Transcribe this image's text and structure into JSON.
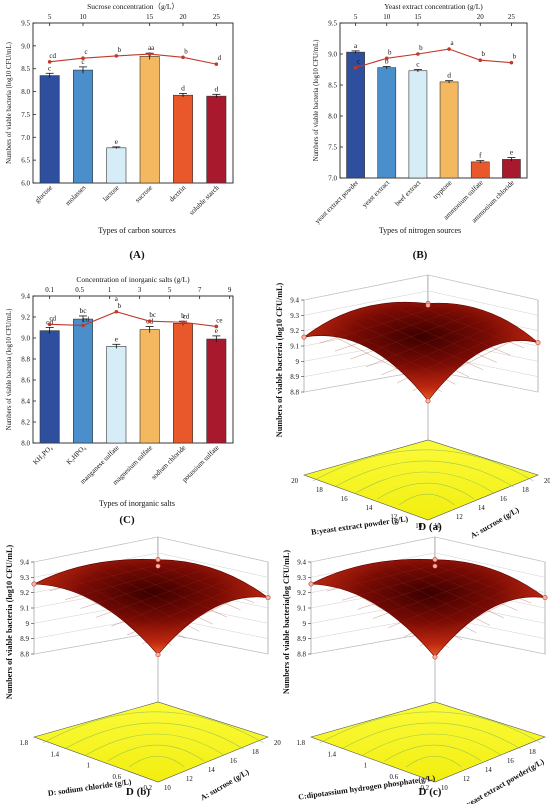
{
  "chart_data": [
    {
      "id": "A",
      "type": "bar",
      "panel_label": "(A)",
      "top_axis_label": "Sucrose concentration（g/L）",
      "top_ticks": [
        "5",
        "10",
        "15",
        "20",
        "25"
      ],
      "top_ticks_at": [
        0,
        1,
        3,
        4,
        5
      ],
      "xlabel": "Types of carbon sources",
      "ylabel": "Numbers of viable bacteria (log10 CFU/mL)",
      "ylim": [
        6.0,
        9.5
      ],
      "yticks": [
        "6.0",
        "6.5",
        "7.0",
        "7.5",
        "8.0",
        "8.5",
        "9.0",
        "9.5"
      ],
      "categories": [
        "glucose",
        "molasses",
        "lactose",
        "sucrose",
        "dextrin",
        "soluble starch"
      ],
      "values": [
        8.35,
        8.47,
        6.77,
        8.77,
        7.92,
        7.9
      ],
      "errors": [
        0.05,
        0.07,
        0.02,
        0.07,
        0.04,
        0.04
      ],
      "letters": [
        "c",
        "c",
        "e",
        "a",
        "d",
        "d"
      ],
      "colors": [
        "#2e4f9e",
        "#4a8fcb",
        "#d6ecf7",
        "#f4b860",
        "#e8582a",
        "#a8192e"
      ],
      "line_values": [
        8.65,
        8.73,
        8.78,
        8.82,
        8.75,
        8.6
      ],
      "line_letters": [
        "cd",
        "c",
        "b",
        "a",
        "b",
        "d"
      ]
    },
    {
      "id": "B",
      "type": "bar",
      "panel_label": "(B)",
      "top_axis_label": "Yeast extract concentration (g/L)",
      "top_ticks": [
        "5",
        "10",
        "15",
        "20",
        "25"
      ],
      "top_ticks_at": [
        0,
        1,
        2,
        4,
        5
      ],
      "xlabel": "Types of nitrogen sources",
      "ylabel": "Numbers of viable bacteria (log10 CFU/mL)",
      "ylim": [
        7.0,
        9.5
      ],
      "yticks": [
        "7.0",
        "7.5",
        "8.0",
        "8.5",
        "9.0",
        "9.5"
      ],
      "categories": [
        "yeast extract powder",
        "yeast extract",
        "beef extract",
        "tryptone",
        "ammonium sulfate",
        "ammonium chloride"
      ],
      "values": [
        9.03,
        8.78,
        8.73,
        8.55,
        7.26,
        7.3
      ],
      "errors": [
        0.02,
        0.02,
        0.02,
        0.02,
        0.02,
        0.03
      ],
      "letters": [
        "a",
        "b",
        "c",
        "d",
        "f",
        "e"
      ],
      "colors": [
        "#2e4f9e",
        "#4a8fcb",
        "#d6ecf7",
        "#f4b860",
        "#e8582a",
        "#a8192e"
      ],
      "line_values": [
        8.78,
        8.93,
        9.0,
        9.08,
        8.9,
        8.86
      ],
      "line_letters": [
        "c",
        "b",
        "b",
        "a",
        "b",
        "b"
      ]
    },
    {
      "id": "C",
      "type": "bar",
      "panel_label": "(C)",
      "top_axis_label": "Concentration of inorganic salts (g/L)",
      "top_ticks": [
        "0.1",
        "0.5",
        "1",
        "3",
        "5",
        "7",
        "9"
      ],
      "top_ticks_at": [
        0,
        0.9,
        1.8,
        2.7,
        3.6,
        4.5,
        5.4
      ],
      "xlabel": "Types of inorganic salts",
      "ylabel": "Numbers of viable bacteria (log10 CFU/mL)",
      "ylim": [
        8.0,
        9.4
      ],
      "yticks": [
        "8.0",
        "8.2",
        "8.4",
        "8.6",
        "8.8",
        "9.0",
        "9.2",
        "9.4"
      ],
      "categories": [
        "KH₂PO₄",
        "K₂HPO₄",
        "manganese sulfate",
        "magnesium sulfate",
        "sodium chloride",
        "potassium sulfate"
      ],
      "values": [
        9.07,
        9.18,
        8.92,
        9.08,
        9.14,
        8.99
      ],
      "errors": [
        0.03,
        0.03,
        0.02,
        0.03,
        0.02,
        0.03
      ],
      "letters": [
        "cd",
        "bc",
        "e",
        "cd",
        "b",
        "e"
      ],
      "colors": [
        "#2e4f9e",
        "#4a8fcb",
        "#d6ecf7",
        "#f4b860",
        "#e8582a",
        "#a8192e"
      ],
      "line_values": [
        9.13,
        9.12,
        9.25,
        9.16,
        9.15,
        9.11
      ],
      "line_letters": [
        "cd",
        "cd",
        "b",
        "bc",
        "cd",
        "ce"
      ],
      "line_extra_letters": [
        "",
        "",
        "a",
        "",
        "",
        ""
      ]
    },
    {
      "id": "Da",
      "type": "surface",
      "panel_label": "D (a)",
      "zlabel": "Numbers of viable bacteria (log10 CFU/mL)",
      "zticks": [
        "8.8",
        "8.9",
        "9",
        "9.1",
        "9.2",
        "9.3",
        "9.4"
      ],
      "zrange": [
        8.8,
        9.4
      ],
      "left_axis_label": "B:yeast extract powder (g/L)",
      "left_ticks": [
        "10",
        "12",
        "14",
        "16",
        "18",
        "20"
      ],
      "right_axis_label": "A: sucrose (g/L)",
      "right_ticks": [
        "10",
        "12",
        "14",
        "16",
        "18",
        "20"
      ],
      "corner_values": {
        "left": 9.15,
        "back": 9.25,
        "right": 9.12,
        "front": 8.93
      },
      "peak_value": 9.32
    },
    {
      "id": "Db",
      "type": "surface",
      "panel_label": "D (b)",
      "zlabel": "Numbers of viable bacteria (log10 CFU/mL)",
      "zticks": [
        "8.8",
        "8.9",
        "9",
        "9.1",
        "9.2",
        "9.3",
        "9.4"
      ],
      "zrange": [
        8.8,
        9.4
      ],
      "left_axis_label": "D: sodium chloride (g/L)",
      "left_ticks": [
        "0.2",
        "0.6",
        "1",
        "1.4",
        "1.8"
      ],
      "right_axis_label": "A: sucrose (g/L)",
      "right_ticks": [
        "10",
        "12",
        "14",
        "16",
        "18",
        "20"
      ],
      "corner_values": {
        "left": 9.28,
        "back": 9.3,
        "right": 9.18,
        "front": 9.0
      },
      "peak_value": 9.33
    },
    {
      "id": "Dc",
      "type": "surface",
      "panel_label": "D (c)",
      "zlabel": "Numbers of viable bacteria(log CFU/mL)",
      "zticks": [
        "8.8",
        "8.9",
        "9",
        "9.1",
        "9.2",
        "9.3",
        "9.4"
      ],
      "zrange": [
        8.8,
        9.4
      ],
      "left_axis_label": "C:dipotassium hydrogen phosphate(g/L)",
      "left_ticks": [
        "0.2",
        "0.6",
        "1",
        "1.4",
        "1.8"
      ],
      "right_axis_label": "B:yeast extract powder(g/L)",
      "right_ticks": [
        "10",
        "12",
        "14",
        "16",
        "18",
        "20"
      ],
      "corner_values": {
        "left": 9.28,
        "back": 9.3,
        "right": 9.18,
        "front": 8.98
      },
      "peak_value": 9.33
    }
  ]
}
